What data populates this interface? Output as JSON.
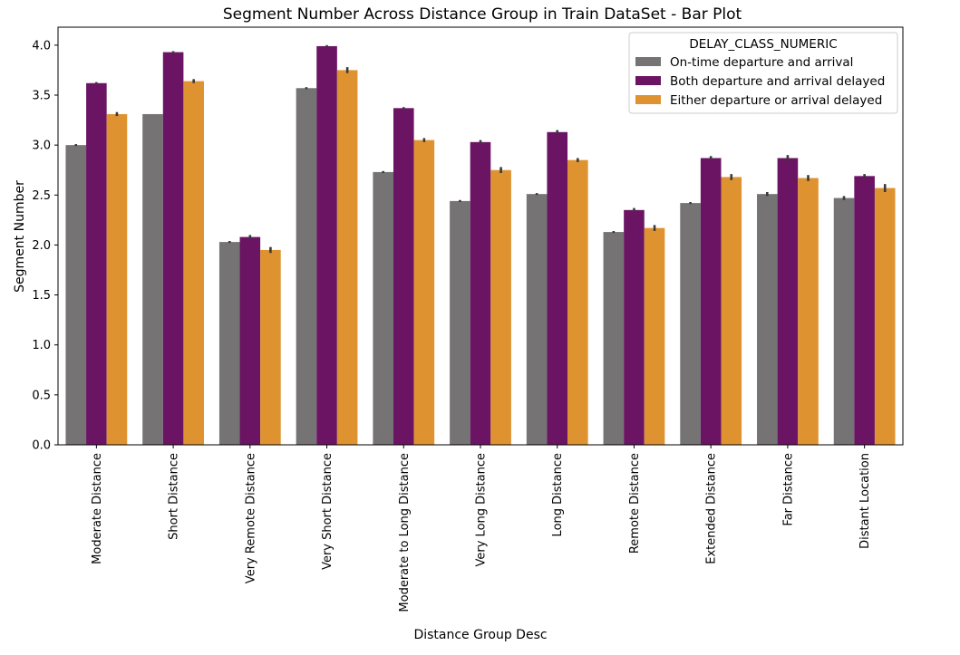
{
  "chart_data": {
    "type": "bar",
    "title": "Segment Number Across Distance Group in Train DataSet - Bar Plot",
    "xlabel": "Distance Group Desc",
    "ylabel": "Segment Number",
    "ylim": [
      0,
      4.18
    ],
    "yticks": [
      "0.0",
      "0.5",
      "1.0",
      "1.5",
      "2.0",
      "2.5",
      "3.0",
      "3.5",
      "4.0"
    ],
    "grid": false,
    "legend": {
      "title": "DELAY_CLASS_NUMERIC",
      "placement": "top-right"
    },
    "categories": [
      "Moderate Distance",
      "Short Distance",
      "Very Remote Distance",
      "Very Short Distance",
      "Moderate to Long Distance",
      "Very Long Distance",
      "Long Distance",
      "Remote Distance",
      "Extended Distance",
      "Far Distance",
      "Distant Location"
    ],
    "series": [
      {
        "name": "On-time departure and arrival",
        "color": "#757374",
        "values": [
          3.0,
          3.31,
          2.03,
          3.57,
          2.73,
          2.44,
          2.51,
          2.13,
          2.42,
          2.51,
          2.47
        ],
        "errors": [
          0.01,
          0.0,
          0.01,
          0.01,
          0.01,
          0.01,
          0.01,
          0.01,
          0.01,
          0.02,
          0.02
        ]
      },
      {
        "name": "Both departure and arrival delayed",
        "color": "#6a1463",
        "values": [
          3.62,
          3.93,
          2.08,
          3.99,
          3.37,
          3.03,
          3.13,
          2.35,
          2.87,
          2.87,
          2.69
        ],
        "errors": [
          0.01,
          0.01,
          0.02,
          0.01,
          0.01,
          0.02,
          0.02,
          0.02,
          0.02,
          0.03,
          0.02
        ]
      },
      {
        "name": "Either departure or arrival delayed",
        "color": "#de9330",
        "values": [
          3.31,
          3.64,
          1.95,
          3.75,
          3.05,
          2.75,
          2.85,
          2.17,
          2.68,
          2.67,
          2.57
        ],
        "errors": [
          0.02,
          0.02,
          0.03,
          0.03,
          0.02,
          0.03,
          0.02,
          0.03,
          0.03,
          0.03,
          0.04
        ]
      }
    ]
  }
}
